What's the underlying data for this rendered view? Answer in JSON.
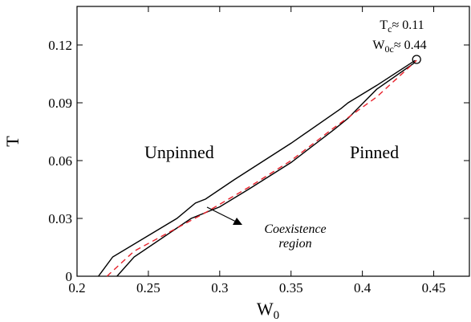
{
  "chart_data": {
    "type": "line",
    "xlabel": {
      "base": "W",
      "sub": "0"
    },
    "ylabel": "T",
    "xlim": [
      0.2,
      0.475
    ],
    "ylim": [
      0,
      0.14
    ],
    "xticks": [
      0.2,
      0.25,
      0.3,
      0.35,
      0.4,
      0.45
    ],
    "yticks": [
      0,
      0.03,
      0.06,
      0.09,
      0.12
    ],
    "series": [
      {
        "color": "#000000",
        "line_style": "solid",
        "x": [
          0.215,
          0.225,
          0.27,
          0.283,
          0.29,
          0.31,
          0.35,
          0.385,
          0.39,
          0.41,
          0.437
        ],
        "values": [
          0,
          0.01,
          0.03,
          0.038,
          0.04,
          0.05,
          0.069,
          0.087,
          0.09,
          0.099,
          0.112
        ]
      },
      {
        "color": "#000000",
        "line_style": "solid",
        "x": [
          0.228,
          0.24,
          0.28,
          0.3,
          0.32,
          0.35,
          0.38,
          0.39,
          0.41,
          0.437
        ],
        "values": [
          0,
          0.01,
          0.03,
          0.036,
          0.045,
          0.059,
          0.076,
          0.082,
          0.097,
          0.111
        ]
      },
      {
        "color": "#e8202a",
        "line_style": "dashed",
        "x": [
          0.221,
          0.24,
          0.27,
          0.29,
          0.32,
          0.35,
          0.38,
          0.41,
          0.438
        ],
        "values": [
          0,
          0.013,
          0.025,
          0.033,
          0.046,
          0.06,
          0.077,
          0.093,
          0.112
        ]
      }
    ],
    "critical_point": {
      "x": 0.438,
      "y": 0.1125
    },
    "annotations": {
      "unpinned": "Unpinned",
      "pinned": "Pinned",
      "coexistence": [
        "Coexistence",
        "region"
      ],
      "tc": {
        "base": "T",
        "sub": "c",
        "text": "≈ 0.11"
      },
      "w0c": {
        "base": "W",
        "sub": "0c",
        "text": "≈ 0.44"
      }
    }
  }
}
